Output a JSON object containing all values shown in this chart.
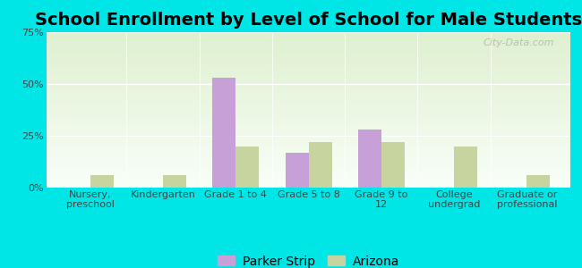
{
  "title": "School Enrollment by Level of School for Male Students",
  "categories": [
    "Nursery,\npreschool",
    "Kindergarten",
    "Grade 1 to 4",
    "Grade 5 to 8",
    "Grade 9 to\n12",
    "College\nundergrad",
    "Graduate or\nprofessional"
  ],
  "parker_strip": [
    0,
    0,
    53,
    17,
    28,
    0,
    0
  ],
  "arizona": [
    6,
    6,
    20,
    22,
    22,
    20,
    6
  ],
  "parker_strip_color": "#c8a0d8",
  "arizona_color": "#c8d4a0",
  "background_color": "#00e5e5",
  "plot_bg_top": "#dff0d0",
  "plot_bg_bottom": "#f8fff8",
  "ylim": [
    0,
    75
  ],
  "yticks": [
    0,
    25,
    50,
    75
  ],
  "yticklabels": [
    "0%",
    "25%",
    "50%",
    "75%"
  ],
  "title_fontsize": 14,
  "tick_fontsize": 8,
  "legend_fontsize": 10,
  "bar_width": 0.32,
  "watermark": "City-Data.com"
}
